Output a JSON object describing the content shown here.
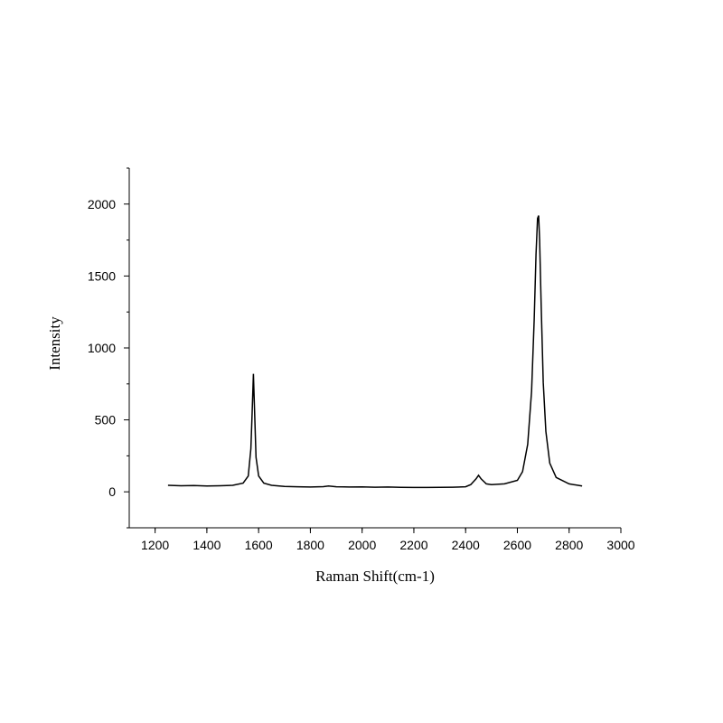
{
  "chart_data": {
    "type": "line",
    "title": "",
    "xlabel": "Raman Shift(cm-1)",
    "ylabel": "Intensity",
    "xlim": [
      1100,
      3000
    ],
    "ylim": [
      -250,
      2250
    ],
    "x_ticks": [
      1200,
      1400,
      1600,
      1800,
      2000,
      2200,
      2400,
      2600,
      2800,
      3000
    ],
    "y_ticks": [
      0,
      500,
      1000,
      1500,
      2000
    ],
    "grid": false,
    "legend": "none",
    "line_color": "#000000",
    "series": [
      {
        "x": [
          1250,
          1300,
          1350,
          1400,
          1450,
          1500,
          1540,
          1560,
          1570,
          1575,
          1580,
          1585,
          1590,
          1600,
          1620,
          1650,
          1700,
          1750,
          1800,
          1850,
          1870,
          1900,
          1950,
          2000,
          2050,
          2100,
          2150,
          2200,
          2250,
          2300,
          2350,
          2400,
          2420,
          2440,
          2450,
          2460,
          2480,
          2500,
          2550,
          2600,
          2620,
          2640,
          2655,
          2665,
          2672,
          2678,
          2682,
          2686,
          2692,
          2700,
          2710,
          2725,
          2750,
          2800,
          2850
        ],
        "y": [
          45,
          42,
          44,
          40,
          42,
          45,
          60,
          110,
          300,
          550,
          820,
          520,
          240,
          110,
          60,
          45,
          38,
          35,
          33,
          36,
          40,
          35,
          33,
          34,
          32,
          33,
          31,
          30,
          30,
          31,
          32,
          35,
          50,
          90,
          115,
          90,
          55,
          50,
          55,
          80,
          140,
          330,
          700,
          1200,
          1650,
          1900,
          1920,
          1750,
          1300,
          760,
          420,
          200,
          100,
          55,
          40
        ]
      }
    ]
  }
}
